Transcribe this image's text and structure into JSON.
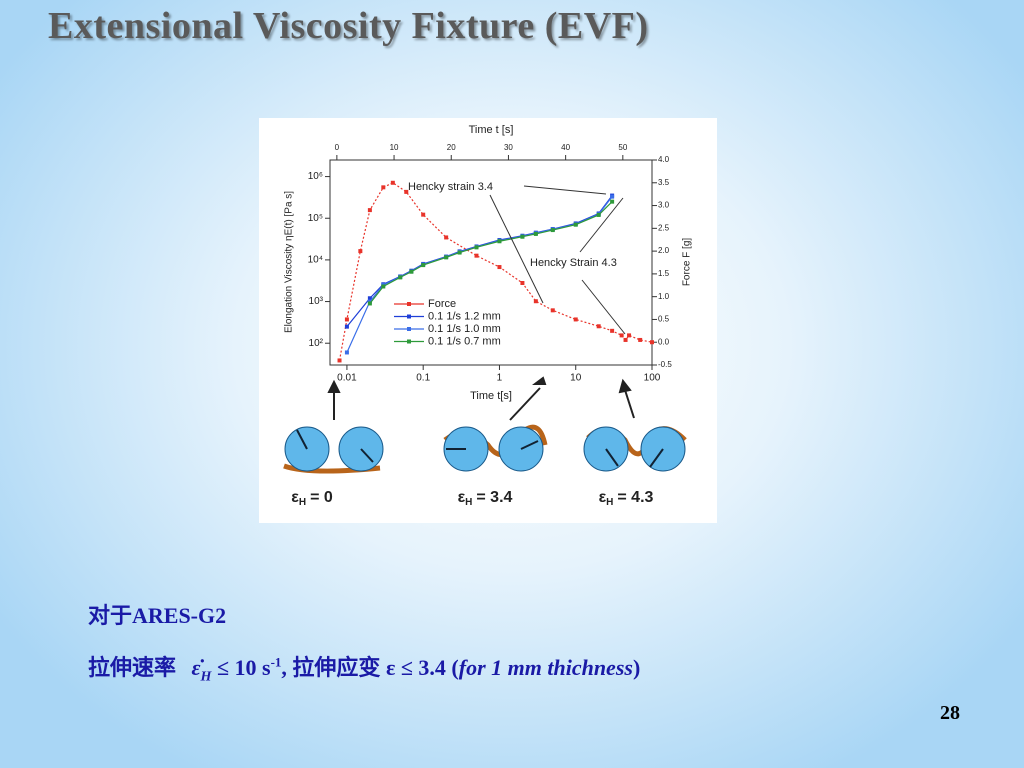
{
  "title": "Extensional Viscosity Fixture (EVF)",
  "chart_data": {
    "type": "line",
    "x_label": "Time t[s]",
    "x2_label": "Time t [s]",
    "y_label": "Elongation Viscosity ηE(t) [Pa s]",
    "y2_label": "Force F [g]",
    "xscale": "log",
    "yscale": "log",
    "xlim": [
      0.006,
      100
    ],
    "xticks": [
      0.01,
      0.1,
      1,
      10,
      100
    ],
    "x2lim": [
      -1.2,
      55.1
    ],
    "x2ticks": [
      0,
      10,
      20,
      30,
      40,
      50
    ],
    "ylim": [
      30,
      2500000
    ],
    "yticks": [
      {
        "value": 100,
        "label": "10²"
      },
      {
        "value": 1000,
        "label": "10³"
      },
      {
        "value": 10000,
        "label": "10⁴"
      },
      {
        "value": 100000,
        "label": "10⁵"
      },
      {
        "value": 1000000,
        "label": "10⁶"
      }
    ],
    "y2lim": [
      -0.5,
      4.0
    ],
    "y2ticks": [
      -0.5,
      {
        "value": 0,
        "label": "0.0"
      },
      0.5,
      {
        "value": 1,
        "label": "1.0"
      },
      1.5,
      {
        "value": 2,
        "label": "2.0"
      },
      2.5,
      {
        "value": 3,
        "label": "3.0"
      },
      3.5,
      {
        "value": 4,
        "label": "4.0"
      }
    ],
    "series": [
      {
        "name": "Force",
        "color": "#e8332a",
        "axis": "y2",
        "x": [
          0.008,
          0.01,
          0.015,
          0.02,
          0.03,
          0.04,
          0.06,
          0.1,
          0.2,
          0.5,
          1,
          2,
          3,
          5,
          10,
          20,
          30,
          40,
          45,
          50,
          70,
          100
        ],
        "values": [
          -0.4,
          0.5,
          2.0,
          2.9,
          3.4,
          3.5,
          3.3,
          2.8,
          2.3,
          1.9,
          1.65,
          1.3,
          0.9,
          0.7,
          0.5,
          0.35,
          0.25,
          0.15,
          0.05,
          0.15,
          0.05,
          0.0
        ]
      },
      {
        "name": "0.1 1/s  1.2 mm",
        "color": "#1f3fd8",
        "x": [
          0.01,
          0.02,
          0.03,
          0.05,
          0.07,
          0.1,
          0.2,
          0.3,
          0.5,
          1,
          2,
          3,
          5,
          10,
          20,
          30
        ],
        "values": [
          250,
          1200,
          2600,
          4000,
          5500,
          8000,
          12000,
          16000,
          21000,
          30000,
          38000,
          45000,
          55000,
          75000,
          130000,
          350000
        ]
      },
      {
        "name": "0.1 1/s  1.0 mm",
        "color": "#3a6ee8",
        "x": [
          0.01,
          0.02,
          0.03,
          0.05,
          0.07,
          0.1,
          0.2,
          0.3,
          0.5,
          1,
          2,
          3,
          5,
          10,
          20,
          30
        ],
        "values": [
          60,
          1000,
          2500,
          3900,
          5300,
          7800,
          11800,
          15500,
          20500,
          29000,
          37000,
          44000,
          54000,
          72000,
          125000,
          330000
        ]
      },
      {
        "name": "0.1 1/s  0.7 mm",
        "color": "#2e9a3a",
        "x": [
          0.01,
          0.02,
          0.03,
          0.05,
          0.07,
          0.1,
          0.2,
          0.3,
          0.5,
          1,
          2,
          3,
          5,
          10,
          20,
          30
        ],
        "values": [
          null,
          900,
          2300,
          3800,
          5200,
          7500,
          11500,
          15000,
          20000,
          28000,
          36000,
          42000,
          52000,
          70000,
          120000,
          250000
        ]
      }
    ],
    "annotations": [
      "Hencky strain 3.4",
      "Hencky Strain 4.3"
    ]
  },
  "strain_labels": [
    {
      "symbol": "ε",
      "subscript": "H",
      "text": "= 0"
    },
    {
      "symbol": "ε",
      "subscript": "H",
      "text": "= 3.4"
    },
    {
      "symbol": "ε",
      "subscript": "H",
      "text": "= 4.3"
    }
  ],
  "body": {
    "line1": "对于ARES-G2",
    "line2": {
      "a": "拉伸速率",
      "rate_symbol": "ε̇",
      "rate_sub": "H",
      "b": "≤ 10 s",
      "exp": "-1",
      "c": ", 拉伸应变",
      "d": "ε ≤ 3.4 (",
      "e": "for  1 mm thichness",
      "f": ")"
    }
  },
  "page_number": "28"
}
